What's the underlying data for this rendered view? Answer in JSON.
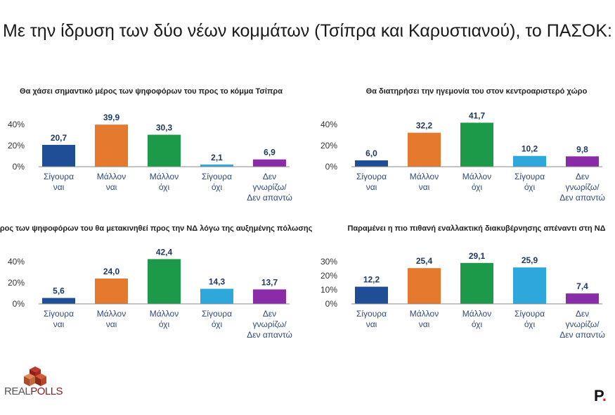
{
  "main_title": "Με την ίδρυση των δύο νέων κομμάτων (Τσίπρα και Καρυστιανού), το ΠΑΣΟΚ:",
  "colors": {
    "Σίγουρα ναι": "#1f4e96",
    "Μάλλον ναι": "#e57a2e",
    "Μάλλον όχι": "#1c9a4a",
    "Σίγουρα όχι": "#2ea7dc",
    "Δεν γνωρίζω/Δεν απαντώ": "#8a2ba8"
  },
  "logos": {
    "left_real": "REAL",
    "left_polls": "POLLS",
    "right": "P"
  },
  "chart_data": [
    {
      "type": "bar",
      "title": "Θα χάσει σημαντικό μέρος των ψηφοφόρων του προς το κόμμα Τσίπρα",
      "categories": [
        "Σίγουρα ναι",
        "Μάλλον ναι",
        "Μάλλον όχι",
        "Σίγουρα όχι",
        "Δεν γνωρίζω/Δεν απαντώ"
      ],
      "category_lines": [
        [
          "Σίγουρα",
          "ναι"
        ],
        [
          "Μάλλον",
          "ναι"
        ],
        [
          "Μάλλον",
          "όχι"
        ],
        [
          "Σίγουρα",
          "όχι"
        ],
        [
          "Δεν",
          "γνωρίζω/",
          "Δεν απαντώ"
        ]
      ],
      "values": [
        20.7,
        39.9,
        30.3,
        2.1,
        6.9
      ],
      "value_labels": [
        "20,7",
        "39,9",
        "30,3",
        "2,1",
        "6,9"
      ],
      "yticks": [
        "0%",
        "20%",
        "40%"
      ],
      "ytick_values": [
        0,
        20,
        40
      ],
      "ylim": [
        0,
        40
      ]
    },
    {
      "type": "bar",
      "title": "Θα διατηρήσει την ηγεμονία του στον κεντροαριστερό χώρο",
      "categories": [
        "Σίγουρα ναι",
        "Μάλλον ναι",
        "Μάλλον όχι",
        "Σίγουρα όχι",
        "Δεν γνωρίζω/Δεν απαντώ"
      ],
      "category_lines": [
        [
          "Σίγουρα",
          "ναι"
        ],
        [
          "Μάλλον",
          "ναι"
        ],
        [
          "Μάλλον",
          "όχι"
        ],
        [
          "Σίγουρα",
          "όχι"
        ],
        [
          "Δεν",
          "γνωρίζω/",
          "Δεν απαντώ"
        ]
      ],
      "values": [
        6.0,
        32.2,
        41.7,
        10.2,
        9.8
      ],
      "value_labels": [
        "6,0",
        "32,2",
        "41,7",
        "10,2",
        "9,8"
      ],
      "yticks": [
        "0%",
        "20%",
        "40%"
      ],
      "ytick_values": [
        0,
        20,
        40
      ],
      "ylim": [
        0,
        40
      ]
    },
    {
      "type": "bar",
      "title": "Μέρος των ψηφοφόρων του θα μετακινηθεί προς την ΝΔ λόγω της αυξημένης πόλωσης",
      "categories": [
        "Σίγουρα ναι",
        "Μάλλον ναι",
        "Μάλλον όχι",
        "Σίγουρα όχι",
        "Δεν γνωρίζω/Δεν απαντώ"
      ],
      "category_lines": [
        [
          "Σίγουρα",
          "ναι"
        ],
        [
          "Μάλλον",
          "ναι"
        ],
        [
          "Μάλλον",
          "όχι"
        ],
        [
          "Σίγουρα",
          "όχι"
        ],
        [
          "Δεν",
          "γνωρίζω/",
          "Δεν απαντώ"
        ]
      ],
      "values": [
        5.6,
        24.0,
        42.4,
        14.3,
        13.7
      ],
      "value_labels": [
        "5,6",
        "24,0",
        "42,4",
        "14,3",
        "13,7"
      ],
      "yticks": [
        "0%",
        "20%",
        "40%"
      ],
      "ytick_values": [
        0,
        20,
        40
      ],
      "ylim": [
        0,
        40
      ]
    },
    {
      "type": "bar",
      "title": "Παραμένει η πιο πιθανή εναλλακτική διακυβέρνησης απέναντι στη ΝΔ",
      "categories": [
        "Σίγουρα ναι",
        "Μάλλον ναι",
        "Μάλλον όχι",
        "Σίγουρα όχι",
        "Δεν γνωρίζω/Δεν απαντώ"
      ],
      "category_lines": [
        [
          "Σίγουρα",
          "ναι"
        ],
        [
          "Μάλλον",
          "ναι"
        ],
        [
          "Μάλλον",
          "όχι"
        ],
        [
          "Σίγουρα",
          "όχι"
        ],
        [
          "Δεν",
          "γνωρίζω/",
          "Δεν απαντώ"
        ]
      ],
      "values": [
        12.2,
        25.4,
        29.1,
        25.9,
        7.4
      ],
      "value_labels": [
        "12,2",
        "25,4",
        "29,1",
        "25,9",
        "7,4"
      ],
      "yticks": [
        "0%",
        "10%",
        "20%",
        "30%"
      ],
      "ytick_values": [
        0,
        10,
        20,
        30
      ],
      "ylim": [
        0,
        30
      ]
    }
  ]
}
